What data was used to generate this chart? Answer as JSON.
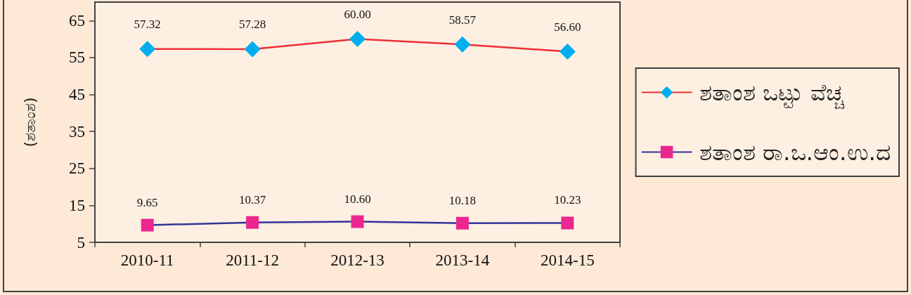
{
  "chart_data": {
    "type": "line",
    "ylabel": "(ಶತಾಂಶ)",
    "categories": [
      "2010-11",
      "2011-12",
      "2012-13",
      "2013-14",
      "2014-15"
    ],
    "series": [
      {
        "name": "ಶತಾಂಶ ಒಟ್ಟು ವೆಚ್ಚ",
        "color": "#ee2e36",
        "colors": [
          "#00aeef",
          "#00aeef",
          "#00aeef",
          "#00aeef",
          "#00aeef"
        ],
        "marker": "diamond",
        "values": [
          57.32,
          57.28,
          60.0,
          58.57,
          56.6
        ],
        "value_labels": [
          "57.32",
          "57.28",
          "60.00",
          "58.57",
          "56.60"
        ]
      },
      {
        "name": "ಶತಾಂಶ ರಾ.ಒ.ಆಂ.ಉ.ದ",
        "color": "#333399",
        "colors": [
          "#ec268f",
          "#ec268f",
          "#ec268f",
          "#ec268f",
          "#ec268f"
        ],
        "marker": "square",
        "values": [
          9.65,
          10.37,
          10.6,
          10.18,
          10.23
        ],
        "value_labels": [
          "9.65",
          "10.37",
          "10.60",
          "10.18",
          "10.23"
        ]
      }
    ],
    "ylim": [
      5,
      70
    ],
    "yticks": [
      5,
      15,
      25,
      35,
      45,
      55,
      65
    ],
    "grid": false,
    "legend": "right",
    "line_style": "solid"
  }
}
